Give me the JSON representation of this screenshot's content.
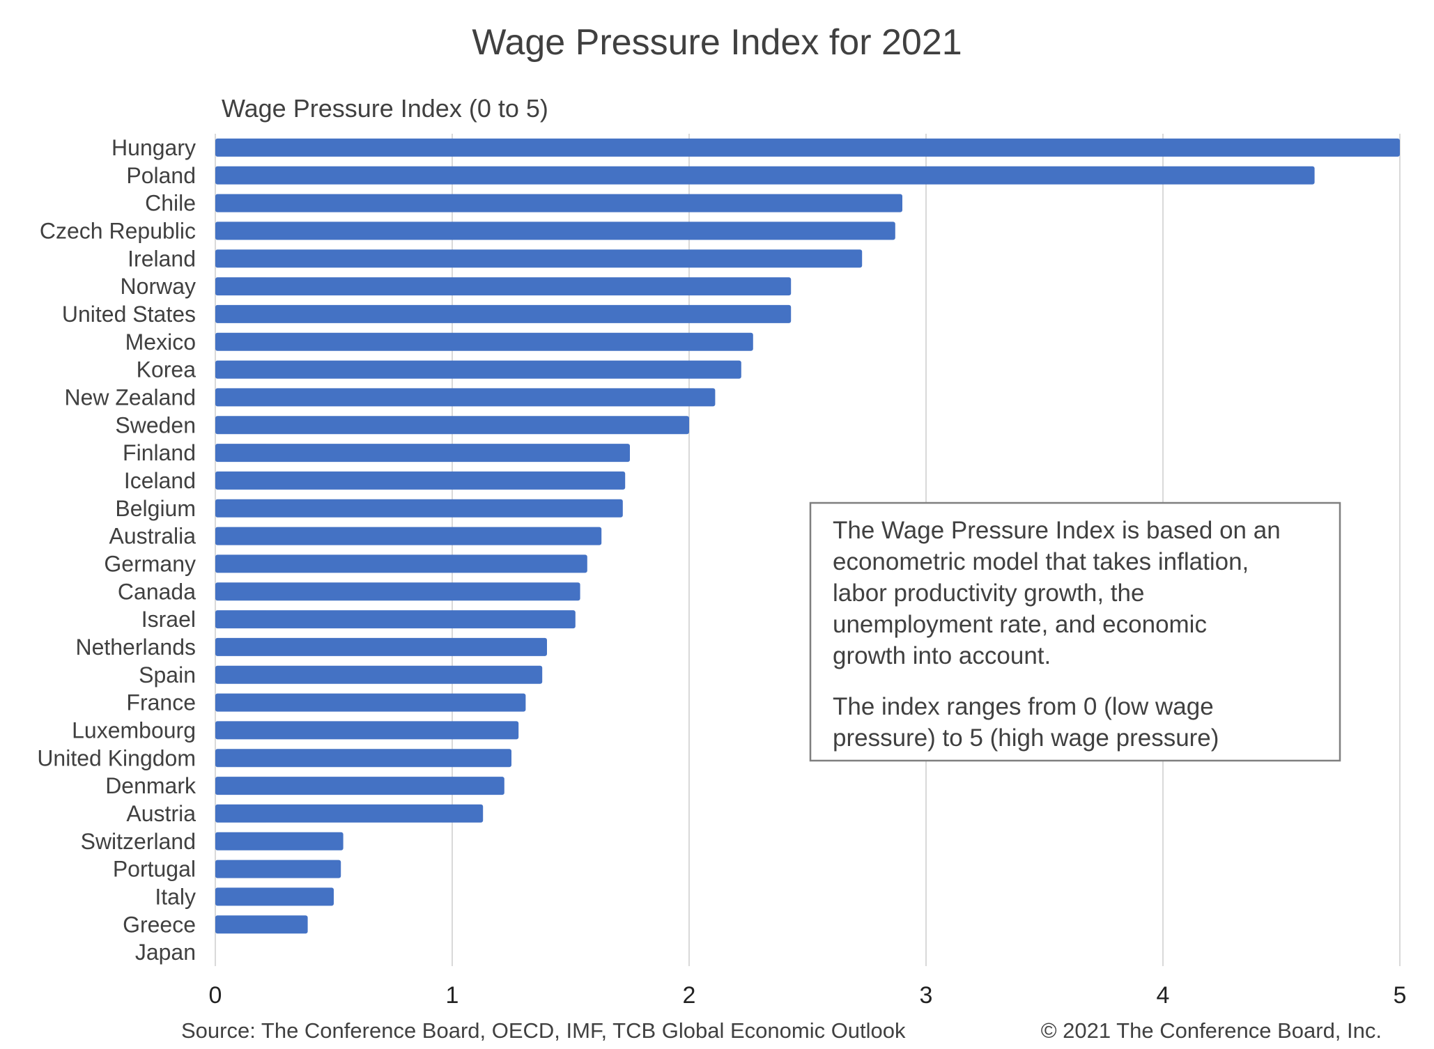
{
  "chart_data": {
    "type": "bar",
    "orientation": "horizontal",
    "title": "Wage Pressure Index for 2021",
    "xlabel": "Wage Pressure Index (0 to 5)",
    "ylabel": "",
    "xlim": [
      0,
      5
    ],
    "x_ticks": [
      "0",
      "1",
      "2",
      "3",
      "4",
      "5"
    ],
    "grid": true,
    "bar_color": "#4472C4",
    "categories": [
      "Hungary",
      "Poland",
      "Chile",
      "Czech Republic",
      "Ireland",
      "Norway",
      "United States",
      "Mexico",
      "Korea",
      "New Zealand",
      "Sweden",
      "Finland",
      "Iceland",
      "Belgium",
      "Australia",
      "Germany",
      "Canada",
      "Israel",
      "Netherlands",
      "Spain",
      "France",
      "Luxembourg",
      "United Kingdom",
      "Denmark",
      "Austria",
      "Switzerland",
      "Portugal",
      "Italy",
      "Greece",
      "Japan"
    ],
    "values": [
      5.0,
      4.64,
      2.9,
      2.87,
      2.73,
      2.43,
      2.43,
      2.27,
      2.22,
      2.11,
      2.0,
      1.75,
      1.73,
      1.72,
      1.63,
      1.57,
      1.54,
      1.52,
      1.4,
      1.38,
      1.31,
      1.28,
      1.25,
      1.22,
      1.13,
      0.54,
      0.53,
      0.5,
      0.39,
      0.0
    ],
    "annotation": {
      "lines_para1": [
        "The Wage Pressure Index is based on an",
        "econometric model that takes inflation,",
        "labor productivity growth, the",
        "unemployment rate, and economic",
        "growth into account."
      ],
      "lines_para2": [
        "The index ranges from 0 (low wage",
        "pressure) to 5 (high wage pressure)"
      ]
    },
    "source": "Source: The Conference Board, OECD, IMF, TCB Global Economic Outlook",
    "copyright": "© 2021 The Conference Board, Inc."
  }
}
